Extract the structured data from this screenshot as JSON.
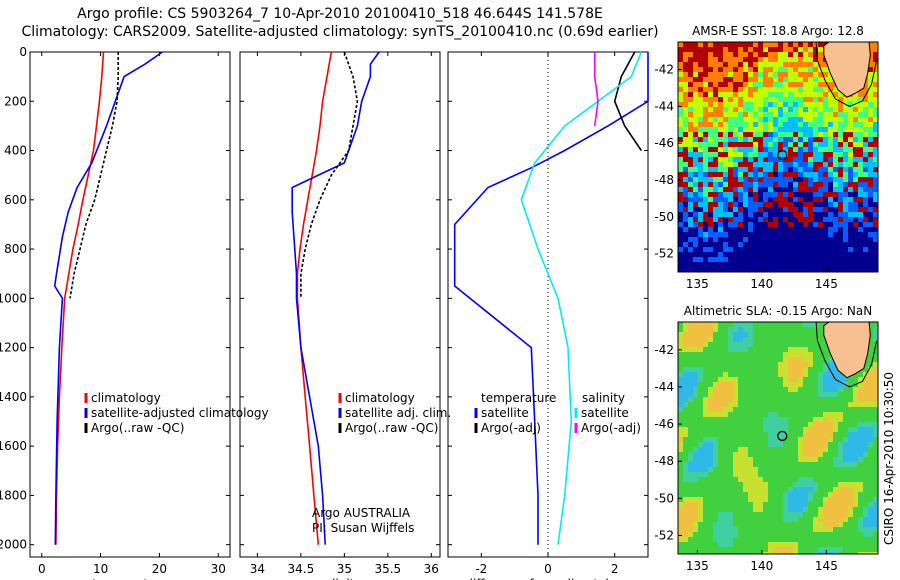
{
  "header": {
    "title_line1": "Argo profile: CS 5903264_7 10-Apr-2010 20100410_518 46.644S 141.578E",
    "title_line2": "Climatology: CARS2009. Satellite-adjusted climatology: synTS_20100410.nc (0.69d earlier)"
  },
  "footer_note": "CSIRO 16-Apr-2010 10:30:50",
  "chart_data": [
    {
      "type": "line",
      "id": "temperature",
      "xlabel": "temperature",
      "ylabel": "",
      "xlim": [
        -2,
        32
      ],
      "ylim": [
        2050,
        0
      ],
      "xticks": [
        0,
        10,
        20,
        30
      ],
      "yticks": [
        0,
        200,
        400,
        600,
        800,
        1000,
        1200,
        1400,
        1600,
        1800,
        2000
      ],
      "legend": [
        "climatology",
        "satellite-adjusted climatology",
        "Argo(..raw -QC)"
      ],
      "series": [
        {
          "name": "climatology",
          "color": "#ff0000",
          "x": [
            10.5,
            10.2,
            9.8,
            9.3,
            8.8,
            7.9,
            7.0,
            6.2,
            5.3,
            4.6,
            3.9,
            3.4,
            3.0,
            2.7,
            2.5,
            2.4
          ],
          "y": [
            0,
            100,
            200,
            300,
            400,
            500,
            600,
            700,
            800,
            900,
            1000,
            1200,
            1400,
            1600,
            1800,
            2000
          ]
        },
        {
          "name": "satellite-adjusted climatology",
          "color": "#0000ff",
          "x": [
            20.5,
            17.5,
            14.0,
            12.5,
            11.0,
            8.5,
            6.0,
            4.5,
            3.5,
            2.5,
            2.2,
            3.5,
            3.0,
            2.6,
            2.4,
            2.3
          ],
          "y": [
            0,
            50,
            100,
            200,
            300,
            450,
            550,
            650,
            750,
            900,
            950,
            1000,
            1200,
            1500,
            1800,
            2000
          ]
        },
        {
          "name": "Argo(..raw -QC)",
          "color": "#000000",
          "x": [
            13.0,
            13.0,
            12.8,
            12.0,
            11.0,
            10.0,
            9.0,
            7.5,
            6.5,
            5.5,
            4.8
          ],
          "y": [
            0,
            100,
            200,
            300,
            400,
            500,
            600,
            700,
            800,
            900,
            1000
          ]
        }
      ]
    },
    {
      "type": "line",
      "id": "salinity",
      "xlabel": "salinity",
      "ylabel": "",
      "xlim": [
        33.8,
        36.1
      ],
      "ylim": [
        2050,
        0
      ],
      "xticks": [
        34,
        34.5,
        35,
        35.5,
        36
      ],
      "legend": [
        "climatology",
        "satellite adj. clim.",
        "Argo(..raw -QC)"
      ],
      "annotations": [
        "Argo AUSTRALIA",
        "PI: Susan Wijffels"
      ],
      "series": [
        {
          "name": "climatology",
          "color": "#ff0000",
          "x": [
            34.85,
            34.8,
            34.75,
            34.72,
            34.68,
            34.63,
            34.58,
            34.53,
            34.49,
            34.46,
            34.46,
            34.5,
            34.55,
            34.6,
            34.65,
            34.7
          ],
          "y": [
            0,
            100,
            200,
            300,
            400,
            500,
            600,
            700,
            800,
            900,
            1000,
            1200,
            1400,
            1600,
            1800,
            2000
          ]
        },
        {
          "name": "satellite adj. clim.",
          "color": "#0000ff",
          "x": [
            35.4,
            35.3,
            35.3,
            35.2,
            35.15,
            35.0,
            34.4,
            34.4,
            34.42,
            34.45,
            34.45,
            34.5,
            34.6,
            34.7,
            34.75,
            34.78
          ],
          "y": [
            0,
            50,
            100,
            200,
            300,
            450,
            550,
            650,
            750,
            900,
            1000,
            1200,
            1400,
            1600,
            1800,
            2000
          ]
        },
        {
          "name": "Argo(..raw -QC)",
          "color": "#000000",
          "x": [
            35.0,
            35.1,
            35.15,
            35.1,
            35.05,
            34.85,
            34.72,
            34.62,
            34.55,
            34.5,
            34.5
          ],
          "y": [
            0,
            100,
            200,
            300,
            400,
            500,
            600,
            700,
            800,
            900,
            1000
          ]
        }
      ]
    },
    {
      "type": "line",
      "id": "difference",
      "xlabel": "difference from climatology",
      "ylabel": "",
      "xlim": [
        -3,
        3
      ],
      "ylim": [
        2050,
        0
      ],
      "xticks": [
        -2,
        0,
        2
      ],
      "legend": [
        "temperature",
        "satellite",
        "Argo(-adj)",
        "salinity",
        "satellite",
        "Argo(-adj)"
      ],
      "series": [
        {
          "name": "satellite",
          "color": "#0000ff",
          "x": [
            3.0,
            3.0,
            1.8,
            0.5,
            -0.5,
            -1.8,
            -2.8,
            -2.8,
            -0.5,
            -0.4,
            -0.3,
            -0.3
          ],
          "y": [
            0,
            200,
            300,
            400,
            470,
            550,
            700,
            950,
            1200,
            1500,
            1800,
            2000
          ]
        },
        {
          "name": "Argo(-adj)",
          "color": "#000000",
          "x": [
            2.6,
            2.2,
            2.0,
            2.3,
            2.8
          ],
          "y": [
            0,
            100,
            200,
            300,
            400
          ]
        },
        {
          "name": "satellite",
          "color": "#00eeee",
          "x": [
            2.8,
            2.5,
            1.5,
            0.5,
            -0.4,
            -0.8,
            -0.3,
            0.3,
            0.6,
            0.7,
            0.5,
            0.3
          ],
          "y": [
            0,
            100,
            200,
            300,
            450,
            600,
            800,
            1000,
            1200,
            1500,
            1800,
            2000
          ]
        },
        {
          "name": "Argo(-adj)",
          "color": "#ff00ff",
          "x": [
            1.4,
            1.4,
            1.5,
            1.4
          ],
          "y": [
            0,
            100,
            200,
            300
          ]
        }
      ]
    },
    {
      "type": "heatmap",
      "id": "sst-map",
      "title": "AMSR-E SST: 18.8 Argo: 12.8",
      "xlim": [
        133.5,
        149
      ],
      "ylim": [
        -53,
        -40.5
      ],
      "xticks": [
        135,
        140,
        145
      ],
      "yticks": [
        -42,
        -44,
        -46,
        -48,
        -50,
        -52
      ],
      "argo_position": [
        141.58,
        -46.64
      ],
      "colors": [
        "#00008f",
        "#0060ff",
        "#00c0ff",
        "#40ff80",
        "#c0ff00",
        "#ff8000",
        "#b00000"
      ]
    },
    {
      "type": "heatmap",
      "id": "sla-map",
      "title": "Altimetric SLA: -0.15 Argo: NaN",
      "xlim": [
        133.5,
        149
      ],
      "ylim": [
        -53,
        -40.5
      ],
      "xticks": [
        135,
        140,
        145
      ],
      "yticks": [
        -42,
        -44,
        -46,
        -48,
        -50,
        -52
      ],
      "argo_position": [
        141.58,
        -46.64
      ]
    }
  ]
}
